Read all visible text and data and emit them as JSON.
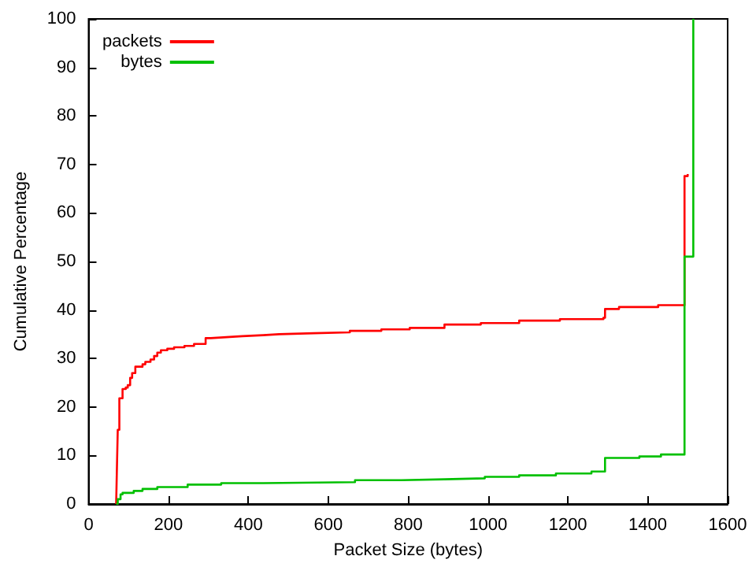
{
  "chart_data": {
    "type": "step",
    "xlabel": "Packet Size (bytes)",
    "ylabel": "Cumulative Percentage",
    "xlim": [
      0,
      1600
    ],
    "ylim": [
      0,
      100
    ],
    "xticks": [
      0,
      200,
      400,
      600,
      800,
      1000,
      1200,
      1400,
      1600
    ],
    "yticks": [
      0,
      10,
      20,
      30,
      40,
      50,
      60,
      70,
      80,
      90,
      100
    ],
    "grid": false,
    "legend": "top left",
    "line_style": "solid",
    "marker": "none",
    "series": [
      {
        "name": "packets",
        "color": "#ff0000",
        "x": [
          69,
          71,
          73,
          77,
          85,
          93,
          98,
          104,
          109,
          117,
          135,
          142,
          155,
          164,
          172,
          181,
          197,
          214,
          240,
          264,
          293,
          306,
          345,
          385,
          437,
          477,
          564,
          654,
          733,
          804,
          891,
          982,
          1078,
          1180,
          1289,
          1293,
          1328,
          1426,
          1492,
          1500
        ],
        "values": [
          0,
          7.8,
          15.3,
          21.8,
          23.7,
          24,
          24.5,
          26,
          27,
          28.3,
          28.8,
          29.3,
          29.8,
          30.5,
          31.2,
          31.7,
          32,
          32.3,
          32.6,
          33,
          34.2,
          34.4,
          34.6,
          34.8,
          35,
          35.2,
          35.4,
          35.7,
          36,
          36.3,
          37,
          37.3,
          37.8,
          38.1,
          38.4,
          40.2,
          40.6,
          41,
          67.6,
          68
        ]
      },
      {
        "name": "bytes",
        "color": "#00c000",
        "x": [
          69,
          73,
          80,
          85,
          113,
          135,
          172,
          248,
          332,
          437,
          667,
          783,
          891,
          992,
          1078,
          1170,
          1259,
          1293,
          1379,
          1433,
          1492,
          1514
        ],
        "values": [
          0,
          1,
          2,
          2.3,
          2.7,
          3.1,
          3.5,
          4,
          4.3,
          4.5,
          4.9,
          5.1,
          5.3,
          5.6,
          5.9,
          6.3,
          6.7,
          9.5,
          9.8,
          10.2,
          51,
          100
        ]
      }
    ]
  }
}
